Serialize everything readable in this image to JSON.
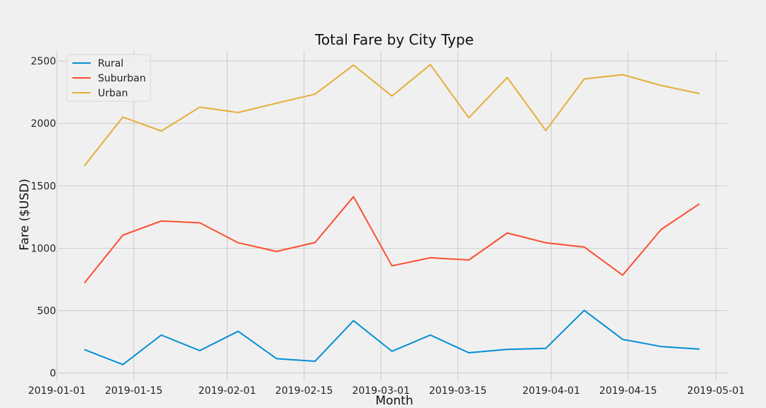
{
  "chart_data": {
    "type": "line",
    "title": "Total Fare by City Type",
    "xlabel": "Month",
    "ylabel": "Fare ($USD)",
    "x": [
      "2019-01-06",
      "2019-01-13",
      "2019-01-20",
      "2019-01-27",
      "2019-02-03",
      "2019-02-10",
      "2019-02-17",
      "2019-02-24",
      "2019-03-03",
      "2019-03-10",
      "2019-03-17",
      "2019-03-24",
      "2019-03-31",
      "2019-04-07",
      "2019-04-14",
      "2019-04-21",
      "2019-04-28"
    ],
    "series": [
      {
        "name": "Rural",
        "color": "#008fd5",
        "values": [
          188,
          68,
          305,
          180,
          335,
          115,
          95,
          420,
          175,
          305,
          163,
          190,
          198,
          502,
          270,
          213,
          192
        ]
      },
      {
        "name": "Suburban",
        "color": "#fc4f30",
        "values": [
          722,
          1105,
          1218,
          1204,
          1044,
          974,
          1046,
          1413,
          859,
          924,
          906,
          1122,
          1044,
          1010,
          784,
          1150,
          1356
        ]
      },
      {
        "name": "Urban",
        "color": "#e5ae38",
        "values": [
          1661,
          2051,
          1939,
          2130,
          2087,
          2162,
          2235,
          2467,
          2219,
          2471,
          2045,
          2368,
          1943,
          2356,
          2390,
          2304,
          2239
        ]
      }
    ],
    "xticks": [
      "2019-01-01",
      "2019-01-15",
      "2019-02-01",
      "2019-02-15",
      "2019-03-01",
      "2019-03-15",
      "2019-04-01",
      "2019-04-15",
      "2019-05-01"
    ],
    "yticks": [
      0,
      500,
      1000,
      1500,
      2000,
      2500
    ],
    "xlim": [
      "2019-01-02",
      "2019-05-03"
    ],
    "ylim": [
      -30,
      2580
    ],
    "grid": true,
    "legend_position": "top-left",
    "colors": {
      "background": "#f0f0f0",
      "grid": "#cbcbcb"
    }
  }
}
